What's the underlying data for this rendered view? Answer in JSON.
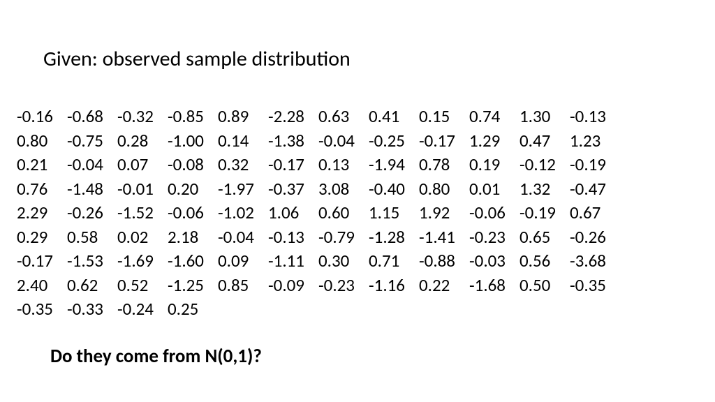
{
  "title": "Given: observed sample distribution",
  "question": "Do they come from N(0,1)?",
  "data_table": {
    "type": "table",
    "font_size_px": 25,
    "text_color": "#000000",
    "background_color": "#ffffff",
    "n_cols": 12,
    "rows": [
      [
        "-0.16",
        "-0.68",
        "-0.32",
        "-0.85",
        "0.89",
        "-2.28",
        "0.63",
        "0.41",
        "0.15",
        "0.74",
        "1.30",
        "-0.13"
      ],
      [
        "0.80",
        "-0.75",
        "0.28",
        "-1.00",
        "0.14",
        "-1.38",
        "-0.04",
        "-0.25",
        "-0.17",
        "1.29",
        "0.47",
        "1.23"
      ],
      [
        "0.21",
        "-0.04",
        "0.07",
        "-0.08",
        "0.32",
        "-0.17",
        "0.13",
        "-1.94",
        "0.78",
        "0.19",
        "-0.12",
        "-0.19"
      ],
      [
        "0.76",
        "-1.48",
        "-0.01",
        "0.20",
        "-1.97",
        "-0.37",
        "3.08",
        "-0.40",
        "0.80",
        "0.01",
        "1.32",
        "-0.47"
      ],
      [
        "2.29",
        "-0.26",
        "-1.52",
        "-0.06",
        "-1.02",
        "1.06",
        "0.60",
        "1.15",
        "1.92",
        "-0.06",
        "-0.19",
        "0.67"
      ],
      [
        "0.29",
        "0.58",
        "0.02",
        "2.18",
        "-0.04",
        "-0.13",
        "-0.79",
        "-1.28",
        "-1.41",
        "-0.23",
        "0.65",
        "-0.26"
      ],
      [
        "-0.17",
        "-1.53",
        "-1.69",
        "-1.60",
        "0.09",
        "-1.11",
        "0.30",
        "0.71",
        "-0.88",
        "-0.03",
        "0.56",
        "-3.68"
      ],
      [
        "2.40",
        "0.62",
        "0.52",
        "-1.25",
        "0.85",
        "-0.09",
        "-0.23",
        "-1.16",
        "0.22",
        "-1.68",
        "0.50",
        "-0.35"
      ],
      [
        "-0.35",
        "-0.33",
        "-0.24",
        "0.25",
        "",
        "",
        "",
        "",
        "",
        "",
        "",
        ""
      ]
    ]
  }
}
